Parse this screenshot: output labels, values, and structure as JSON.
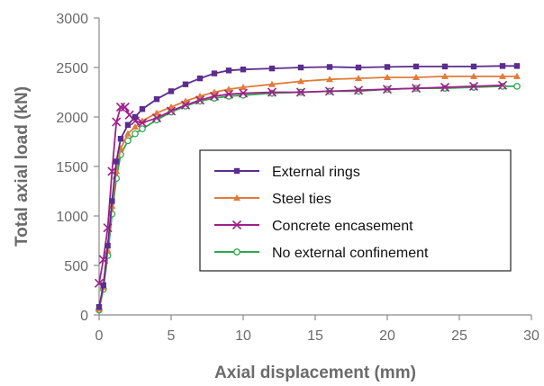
{
  "chart_data": {
    "type": "line",
    "title": "",
    "xlabel": "Axial displacement (mm)",
    "ylabel": "Total axial load (kN)",
    "xlim": [
      0,
      30
    ],
    "ylim": [
      0,
      3000
    ],
    "xticks": [
      "0",
      "5",
      "10",
      "15",
      "20",
      "25",
      "30"
    ],
    "yticks": [
      "0",
      "500",
      "1000",
      "1500",
      "2000",
      "2500",
      "3000"
    ],
    "grid": false,
    "legend_position": "center-right",
    "series": [
      {
        "name": "External rings",
        "color": "#5b2d8e",
        "marker": "square",
        "x": [
          0,
          0.3,
          0.6,
          0.9,
          1.2,
          1.5,
          2,
          2.5,
          3,
          4,
          5,
          6,
          7,
          8,
          9,
          10,
          12,
          14,
          16,
          18,
          20,
          22,
          24,
          26,
          28,
          29
        ],
        "y": [
          80,
          300,
          700,
          1150,
          1550,
          1780,
          1920,
          2000,
          2080,
          2180,
          2260,
          2330,
          2390,
          2440,
          2470,
          2480,
          2490,
          2500,
          2505,
          2500,
          2505,
          2510,
          2510,
          2510,
          2515,
          2515
        ]
      },
      {
        "name": "Steel ties",
        "color": "#e07b39",
        "marker": "triangle",
        "x": [
          0,
          0.3,
          0.6,
          0.9,
          1.2,
          1.5,
          2,
          2.5,
          3,
          4,
          5,
          6,
          7,
          8,
          9,
          10,
          12,
          14,
          16,
          18,
          20,
          22,
          24,
          26,
          28,
          29
        ],
        "y": [
          60,
          280,
          650,
          1100,
          1450,
          1680,
          1830,
          1900,
          1960,
          2040,
          2100,
          2160,
          2210,
          2250,
          2280,
          2300,
          2330,
          2360,
          2380,
          2390,
          2400,
          2400,
          2410,
          2410,
          2410,
          2410
        ]
      },
      {
        "name": "Concrete encasement",
        "color": "#a0208a",
        "marker": "x",
        "x": [
          0,
          0.3,
          0.6,
          0.9,
          1.2,
          1.5,
          1.8,
          2.1,
          2.5,
          3,
          4,
          5,
          6,
          7,
          8,
          9,
          10,
          12,
          14,
          16,
          18,
          20,
          22,
          24,
          26,
          28
        ],
        "y": [
          320,
          560,
          880,
          1450,
          1950,
          2100,
          2100,
          2020,
          1960,
          1940,
          1990,
          2060,
          2120,
          2170,
          2210,
          2230,
          2240,
          2250,
          2250,
          2260,
          2270,
          2280,
          2290,
          2300,
          2310,
          2320
        ]
      },
      {
        "name": "No external confinement",
        "color": "#2fa84f",
        "marker": "circle",
        "x": [
          0,
          0.3,
          0.6,
          0.9,
          1.2,
          1.5,
          2,
          2.5,
          3,
          4,
          5,
          6,
          7,
          8,
          9,
          10,
          12,
          14,
          16,
          18,
          20,
          22,
          24,
          26,
          28,
          29
        ],
        "y": [
          50,
          260,
          600,
          1020,
          1380,
          1620,
          1760,
          1830,
          1880,
          1970,
          2050,
          2110,
          2160,
          2190,
          2210,
          2220,
          2240,
          2250,
          2260,
          2260,
          2280,
          2290,
          2290,
          2300,
          2310,
          2310
        ]
      }
    ]
  }
}
